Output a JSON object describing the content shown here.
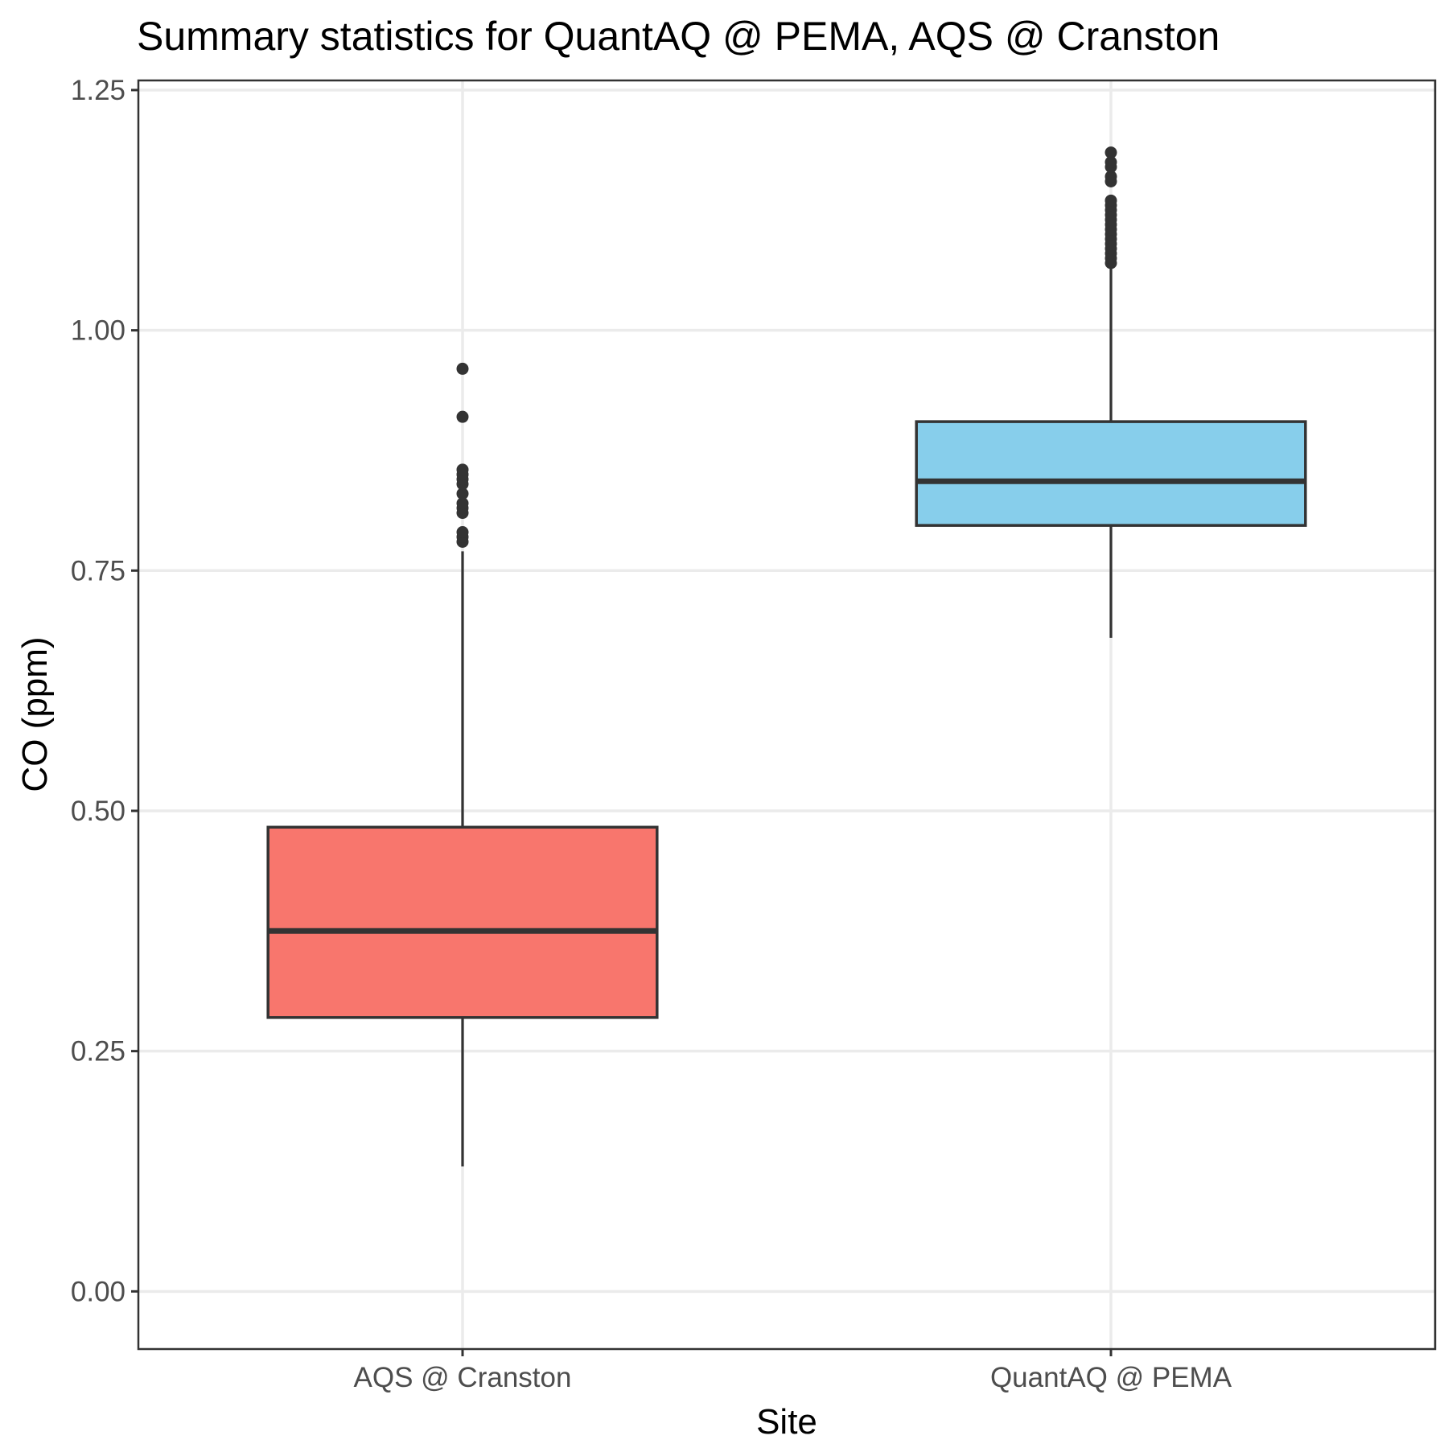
{
  "chart_data": {
    "type": "box",
    "title": "Summary statistics for QuantAQ @ PEMA, AQS @ Cranston",
    "xlabel": "Site",
    "ylabel": "CO (ppm)",
    "ylim": [
      -0.06,
      1.26
    ],
    "y_ticks": [
      0.0,
      0.25,
      0.5,
      0.75,
      1.0,
      1.25
    ],
    "y_tick_labels": [
      "0.00",
      "0.25",
      "0.50",
      "0.75",
      "1.00",
      "1.25"
    ],
    "grid": true,
    "legend": "none",
    "categories": [
      "AQS @ Cranston",
      "QuantAQ @ PEMA"
    ],
    "boxes": [
      {
        "category": "AQS @ Cranston",
        "color": "#F8766D",
        "whisker_low": 0.13,
        "q1": 0.285,
        "median": 0.375,
        "q3": 0.483,
        "whisker_high": 0.77,
        "outliers": [
          0.78,
          0.785,
          0.79,
          0.81,
          0.815,
          0.82,
          0.83,
          0.84,
          0.845,
          0.85,
          0.855,
          0.91,
          0.96
        ]
      },
      {
        "category": "QuantAQ @ PEMA",
        "color": "#87CEEB",
        "whisker_low": 0.68,
        "q1": 0.797,
        "median": 0.843,
        "q3": 0.905,
        "whisker_high": 1.07,
        "outliers": [
          1.07,
          1.075,
          1.08,
          1.085,
          1.09,
          1.095,
          1.1,
          1.105,
          1.11,
          1.115,
          1.12,
          1.125,
          1.13,
          1.135,
          1.155,
          1.16,
          1.17,
          1.175,
          1.185
        ]
      }
    ]
  }
}
